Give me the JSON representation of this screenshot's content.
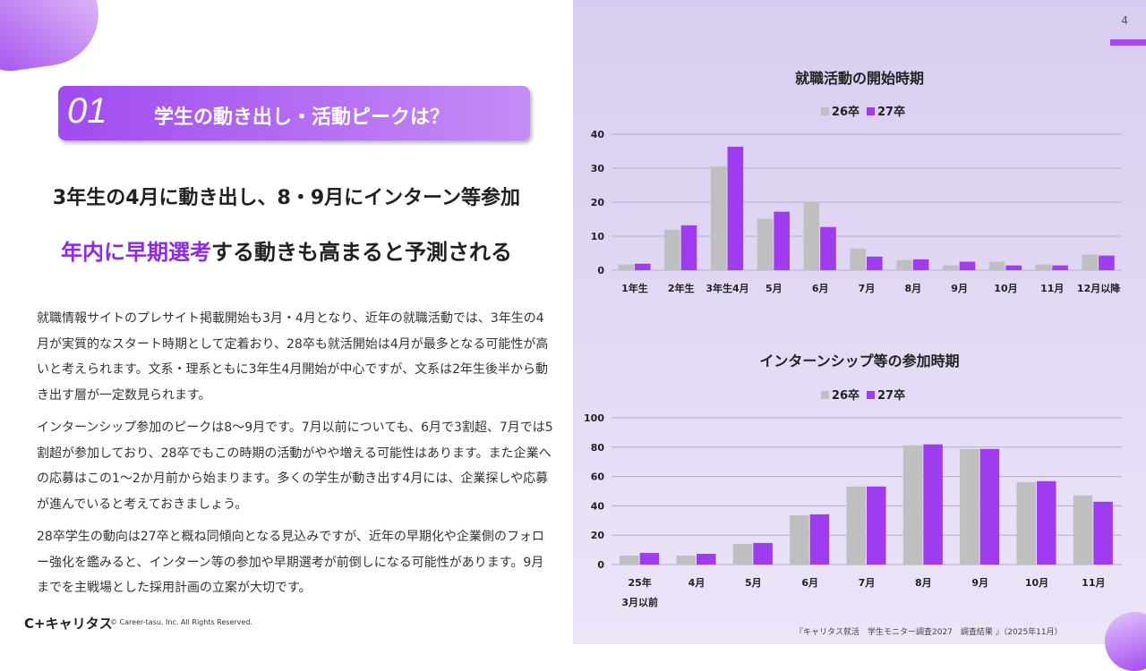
{
  "page_number": "4",
  "header": {
    "number": "01",
    "title": "学生の動き出し・活動ピークは？"
  },
  "headline1": "3年生の4月に動き出し、8・9月にインターン等参加",
  "headline2": {
    "highlight": "年内に早期選考",
    "rest": "する動きも高まると予測される"
  },
  "paragraphs": [
    "就職情報サイトのプレサイト掲載開始も3月・4月となり、近年の就職活動では、3年生の4月が実質的なスタート時期として定着おり、28卒も就活開始は4月が最多となる可能性が高いと考えられます。文系・理系ともに3年生4月開始が中心ですが、文系は2年生後半から動き出す層が一定数見られます。",
    "インターンシップ参加のピークは8〜9月です。7月以前についても、6月で3割超、7月では5割超が参加しており、28卒でもこの時期の活動がやや増える可能性はあります。また企業への応募はこの1〜2か月前から始まります。多くの学生が動き出す4月には、企業探しや応募が進んでいると考えておきましょう。",
    "28卒学生の動向は27卒と概ね同傾向となる見込みですが、近年の早期化や企業側のフォロー強化を鑑みると、インターン等の参加や早期選考が前倒しになる可能性があります。9月までを主戦場とした採用計画の立案が大切です。"
  ],
  "footer": {
    "logo": "C+キャリタス",
    "copyright": "© Career-tasu, Inc. All Rights Reserved.",
    "source": "『キャリタス就活　学生モニター調査2027　調査結果 』（2025年11月）"
  },
  "colors": {
    "s26": "#bfbfbf",
    "s27": "#a03cf0",
    "accent": "#8b2be2"
  },
  "chart_data": [
    {
      "type": "bar",
      "title": "就職活動の開始時期",
      "ylim": [
        0,
        40
      ],
      "yticks": [
        0,
        10,
        20,
        30,
        40
      ],
      "grid": true,
      "legend": "top",
      "categories": [
        "1年生",
        "2年生",
        "3年生4月",
        "5月",
        "6月",
        "7月",
        "8月",
        "9月",
        "10月",
        "11月",
        "12月以降"
      ],
      "series": [
        {
          "name": "26卒",
          "values": [
            1.7,
            11.9,
            30.5,
            15.1,
            20.0,
            6.4,
            3.0,
            1.4,
            2.5,
            1.7,
            4.6
          ]
        },
        {
          "name": "27卒",
          "values": [
            1.9,
            13.2,
            36.3,
            17.2,
            12.7,
            4.0,
            3.2,
            2.5,
            1.4,
            1.4,
            4.3
          ]
        }
      ]
    },
    {
      "type": "bar",
      "title": "インターンシップ等の参加時期",
      "ylim": [
        0,
        100
      ],
      "yticks": [
        0,
        20,
        40,
        60,
        80,
        100
      ],
      "grid": true,
      "legend": "top",
      "categories": [
        "25年\n3月以前",
        "4月",
        "5月",
        "6月",
        "7月",
        "8月",
        "9月",
        "10月",
        "11月"
      ],
      "series": [
        {
          "name": "26卒",
          "values": [
            6.1,
            6.1,
            14.1,
            33.6,
            53.2,
            81.3,
            78.8,
            56.2,
            47.0
          ]
        },
        {
          "name": "27卒",
          "values": [
            7.9,
            7.3,
            14.7,
            34.2,
            53.2,
            81.9,
            78.8,
            56.8,
            42.8
          ]
        }
      ]
    }
  ]
}
